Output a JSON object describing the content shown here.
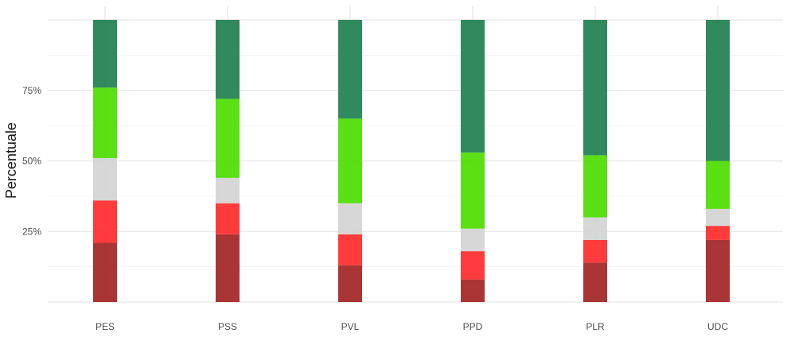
{
  "chart_data": {
    "type": "bar",
    "stacked": true,
    "title": "",
    "xlabel": "",
    "ylabel": "Percentuale",
    "ylim": [
      0,
      100
    ],
    "y_ticks": [
      25,
      50,
      75
    ],
    "y_tick_labels": [
      "25%",
      "50%",
      "75%"
    ],
    "grid": true,
    "legend": "none",
    "categories": [
      "PES",
      "PSS",
      "PVL",
      "PPD",
      "PLR",
      "UDC"
    ],
    "series": [
      {
        "color": "#a32424",
        "values": [
          21,
          24,
          13,
          8,
          14,
          22
        ]
      },
      {
        "color": "#ff2a2a",
        "values": [
          15,
          11,
          11,
          10,
          8,
          5
        ]
      },
      {
        "color": "#d4d4d4",
        "values": [
          15,
          9,
          11,
          8,
          8,
          6
        ]
      },
      {
        "color": "#4ddd00",
        "values": [
          25,
          28,
          30,
          27,
          22,
          17
        ]
      },
      {
        "color": "#1f8050",
        "values": [
          24,
          28,
          35,
          47,
          48,
          50
        ]
      }
    ]
  }
}
